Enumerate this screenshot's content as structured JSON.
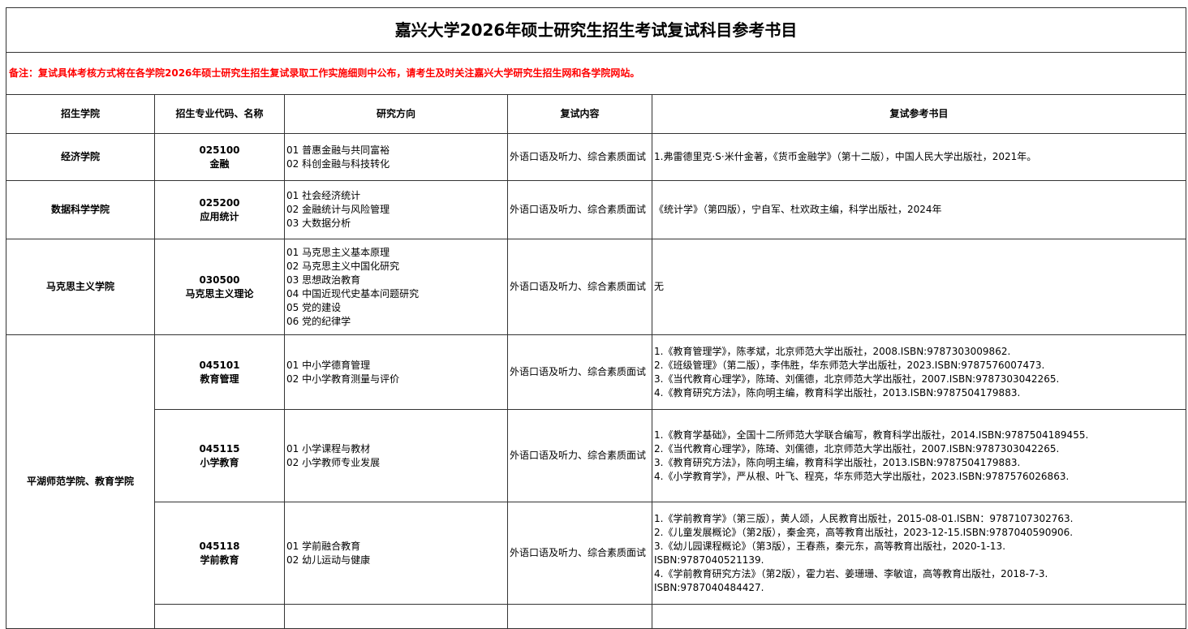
{
  "title": "嘉兴大学2026年硕士研究生招生考试复试科目参考书目",
  "note": "备注：复试具体考核方式将在各学院2026年硕士研究生招生复试录取工作实施细则中公布，请考生及时关注嘉兴大学研究生招生网和各学院网站。",
  "colors": {
    "note": "#ff0000"
  },
  "headers": [
    "招生学院",
    "招生专业代码、名称",
    "研究方向",
    "复试内容",
    "复试参考书目"
  ],
  "rows": [
    {
      "college": "经济学院",
      "code": "025100",
      "major": "金融",
      "directions": "01 普惠金融与共同富裕\n02 科创金融与科技转化",
      "content": "外语口语及听力、综合素质面试",
      "books": "1.弗雷德里克·S·米什金著，《货币金融学》（第十二版），中国人民大学出版社，2021年。"
    },
    {
      "college": "数据科学学院",
      "code": "025200",
      "major": "应用统计",
      "directions": "01 社会经济统计\n02 金融统计与风险管理\n03 大数据分析",
      "content": "外语口语及听力、综合素质面试",
      "books": "《统计学》（第四版），宁自军、杜欢政主编，科学出版社，2024年"
    },
    {
      "college": "马克思主义学院",
      "code": "030500",
      "major": "马克思主义理论",
      "directions": "01 马克思主义基本原理\n02 马克思主义中国化研究\n03 思想政治教育\n04 中国近现代史基本问题研究\n05 党的建设\n06 党的纪律学",
      "content": "外语口语及听力、综合素质面试",
      "books": "无"
    },
    {
      "college": "平湖师范学院、教育学院",
      "code": "045101",
      "major": "教育管理",
      "directions": "01 中小学德育管理\n02 中小学教育测量与评价",
      "content": "外语口语及听力、综合素质面试",
      "books": "1.《教育管理学》，陈孝斌，北京师范大学出版社，2008.ISBN:9787303009862.\n2.《班级管理》（第二版），李伟胜，华东师范大学出版社，2023.ISBN:9787576007473.\n3.《当代教育心理学》，陈琦、刘儒德，北京师范大学出版社，2007.ISBN:9787303042265.\n4.《教育研究方法》，陈向明主编，教育科学出版社，2013.ISBN:9787504179883."
    },
    {
      "code": "045115",
      "major": "小学教育",
      "directions": "01 小学课程与教材\n02 小学教师专业发展",
      "content": "外语口语及听力、综合素质面试",
      "books": "1.《教育学基础》，全国十二所师范大学联合编写，教育科学出版社，2014.ISBN:9787504189455.\n2.《当代教育心理学》，陈琦、刘儒德，北京师范大学出版社，2007.ISBN:9787303042265.\n3.《教育研究方法》，陈向明主编，教育科学出版社，2013.ISBN:9787504179883.\n4.《小学教育学》，严从根、叶飞、程亮，华东师范大学出版社，2023.ISBN:9787576026863."
    },
    {
      "code": "045118",
      "major": "学前教育",
      "directions": "01 学前融合教育\n02 幼儿运动与健康",
      "content": "外语口语及听力、综合素质面试",
      "books": "1.《学前教育学》（第三版），黄人颂，人民教育出版社，2015-08-01.ISBN：9787107302763.\n2.《儿童发展概论》（第2版），秦金亮，高等教育出版社，2023-12-15.ISBN:9787040590906.\n3.《幼儿园课程概论》（第3版），王春燕，秦元东，高等教育出版社，2020-1-13.\nISBN:9787040521139.\n4.《学前教育研究方法》（第2版），霍力岩、姜珊珊、李敏谊，高等教育出版社，2018-7-3.\nISBN:9787040484427."
    }
  ]
}
